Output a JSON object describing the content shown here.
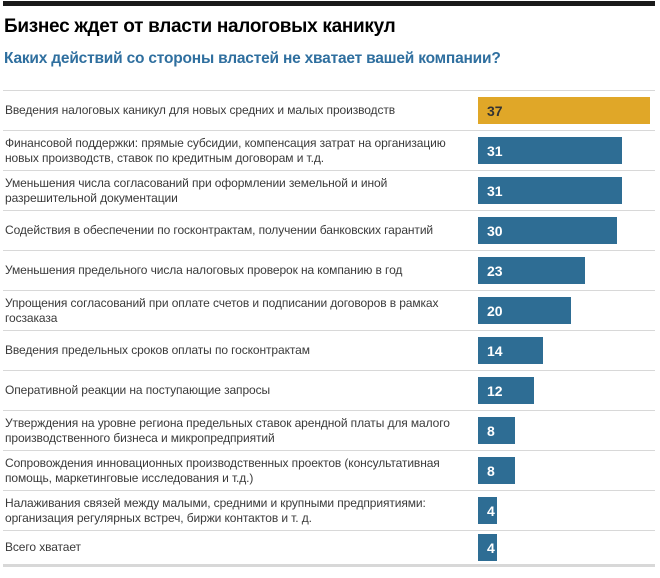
{
  "title": "Бизнес ждет от власти налоговых каникул",
  "subtitle": "Каких действий со стороны властей не хватает вашей компании?",
  "colors": {
    "top_rule": "#1a1a1a",
    "subtitle": "#2f6f9f",
    "label_text": "#3a3a3a",
    "separator": "#d8d8d8",
    "bar": "#2e6d94",
    "highlight_bar": "#e0a728",
    "value_on_bar": "#ffffff",
    "value_on_highlight": "#333333"
  },
  "chart_data": {
    "type": "bar",
    "orientation": "horizontal",
    "title": "Бизнес ждет от власти налоговых каникул",
    "subtitle": "Каких действий со стороны властей не хватает вашей компании?",
    "xlim": [
      0,
      37
    ],
    "grid": false,
    "legend": false,
    "highlight_index": 0,
    "categories": [
      "Введения налоговых каникул для новых средних и малых производств",
      "Финансовой поддержки: прямые субсидии, компенсация затрат на организацию новых производств, ставок по кредитным договорам и т.д.",
      "Уменьшения числа согласований при оформлении земельной и иной разрешительной документации",
      "Содействия в обеспечении по госконтрактам, получении банковских гарантий",
      "Уменьшения предельного числа налоговых проверок на компанию в год",
      "Упрощения согласований при оплате счетов и подписании договоров в рамках госзаказа",
      "Введения предельных сроков оплаты по госконтрактам",
      "Оперативной реакции на поступающие запросы",
      "Утверждения на уровне региона предельных ставок арендной платы для малого производственного бизнеса и микропредприятий",
      "Сопровождения инновационных производственных проектов (консультативная помощь, маркетинговые исследования и т.д.)",
      "Налаживания связей между малыми, средними и крупными предприятиями: организация регулярных встреч, биржи контактов и т. д.",
      "Всего хватает"
    ],
    "values": [
      37,
      31,
      31,
      30,
      23,
      20,
      14,
      12,
      8,
      8,
      4,
      4
    ]
  }
}
